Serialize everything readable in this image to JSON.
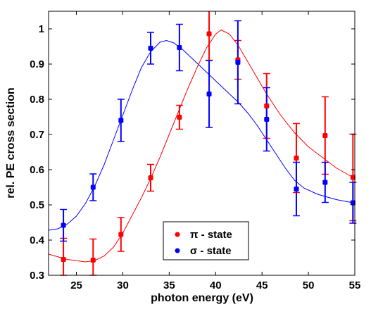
{
  "chart_data": {
    "type": "scatter",
    "xlabel": "photon energy (eV)",
    "ylabel": "rel. PE cross section",
    "xlim": [
      22,
      55
    ],
    "ylim": [
      0.3,
      1.05
    ],
    "xticks": [
      25,
      30,
      35,
      40,
      45,
      50,
      55
    ],
    "yticks": [
      0.3,
      0.4,
      0.5,
      0.6,
      0.7,
      0.8,
      0.9,
      1
    ],
    "ytick_labels": [
      "0.3",
      "0.4",
      "0.5",
      "0.6",
      "0.7",
      "0.8",
      "0.9",
      "1"
    ],
    "grid": false,
    "legend_position": "bottom-center",
    "series": [
      {
        "name": "π - state",
        "color": "#ff0000",
        "points": [
          {
            "x": 23.6,
            "y": 0.345,
            "err": 0.06
          },
          {
            "x": 26.8,
            "y": 0.343,
            "err": 0.06
          },
          {
            "x": 29.8,
            "y": 0.416,
            "err": 0.048
          },
          {
            "x": 33.0,
            "y": 0.577,
            "err": 0.038
          },
          {
            "x": 36.1,
            "y": 0.749,
            "err": 0.034
          },
          {
            "x": 39.3,
            "y": 0.986,
            "err": 0.075
          },
          {
            "x": 42.4,
            "y": 0.912,
            "err": 0.055
          },
          {
            "x": 45.5,
            "y": 0.781,
            "err": 0.092
          },
          {
            "x": 48.7,
            "y": 0.633,
            "err": 0.098
          },
          {
            "x": 51.8,
            "y": 0.697,
            "err": 0.11
          },
          {
            "x": 54.8,
            "y": 0.578,
            "err": 0.123
          }
        ],
        "fit": [
          [
            22,
            0.36
          ],
          [
            24,
            0.345
          ],
          [
            26,
            0.338
          ],
          [
            27,
            0.342
          ],
          [
            28,
            0.355
          ],
          [
            29,
            0.38
          ],
          [
            30,
            0.42
          ],
          [
            31,
            0.47
          ],
          [
            32,
            0.52
          ],
          [
            33,
            0.575
          ],
          [
            34,
            0.635
          ],
          [
            35,
            0.7
          ],
          [
            36,
            0.765
          ],
          [
            37,
            0.83
          ],
          [
            38,
            0.89
          ],
          [
            39,
            0.945
          ],
          [
            40,
            0.985
          ],
          [
            40.6,
            0.997
          ],
          [
            41.5,
            0.985
          ],
          [
            42.5,
            0.95
          ],
          [
            43.5,
            0.905
          ],
          [
            44.5,
            0.86
          ],
          [
            45.5,
            0.815
          ],
          [
            47,
            0.755
          ],
          [
            48.5,
            0.705
          ],
          [
            50,
            0.665
          ],
          [
            51.5,
            0.635
          ],
          [
            53,
            0.605
          ],
          [
            55,
            0.575
          ]
        ]
      },
      {
        "name": "σ - state",
        "color": "#0000ff",
        "points": [
          {
            "x": 23.6,
            "y": 0.442,
            "err": 0.045
          },
          {
            "x": 26.8,
            "y": 0.55,
            "err": 0.038
          },
          {
            "x": 29.8,
            "y": 0.74,
            "err": 0.06
          },
          {
            "x": 33.0,
            "y": 0.945,
            "err": 0.045
          },
          {
            "x": 36.1,
            "y": 0.947,
            "err": 0.066
          },
          {
            "x": 39.3,
            "y": 0.815,
            "err": 0.095
          },
          {
            "x": 42.4,
            "y": 0.905,
            "err": 0.118
          },
          {
            "x": 45.5,
            "y": 0.743,
            "err": 0.09
          },
          {
            "x": 48.7,
            "y": 0.545,
            "err": 0.076
          },
          {
            "x": 51.8,
            "y": 0.564,
            "err": 0.057
          },
          {
            "x": 54.8,
            "y": 0.506,
            "err": 0.058
          }
        ],
        "fit": [
          [
            22,
            0.428
          ],
          [
            23,
            0.432
          ],
          [
            24,
            0.445
          ],
          [
            25,
            0.468
          ],
          [
            26,
            0.505
          ],
          [
            27,
            0.555
          ],
          [
            28,
            0.615
          ],
          [
            29,
            0.685
          ],
          [
            30,
            0.755
          ],
          [
            31,
            0.825
          ],
          [
            32,
            0.89
          ],
          [
            33,
            0.935
          ],
          [
            34,
            0.962
          ],
          [
            34.7,
            0.967
          ],
          [
            35.5,
            0.96
          ],
          [
            36.5,
            0.94
          ],
          [
            37.5,
            0.915
          ],
          [
            38.5,
            0.89
          ],
          [
            39.5,
            0.865
          ],
          [
            40.5,
            0.84
          ],
          [
            41.5,
            0.815
          ],
          [
            42.5,
            0.79
          ],
          [
            43.5,
            0.76
          ],
          [
            44.5,
            0.725
          ],
          [
            45.5,
            0.685
          ],
          [
            46.5,
            0.645
          ],
          [
            47.5,
            0.605
          ],
          [
            48.5,
            0.57
          ],
          [
            49.5,
            0.548
          ],
          [
            51,
            0.53
          ],
          [
            53,
            0.515
          ],
          [
            55,
            0.505
          ]
        ]
      }
    ]
  }
}
